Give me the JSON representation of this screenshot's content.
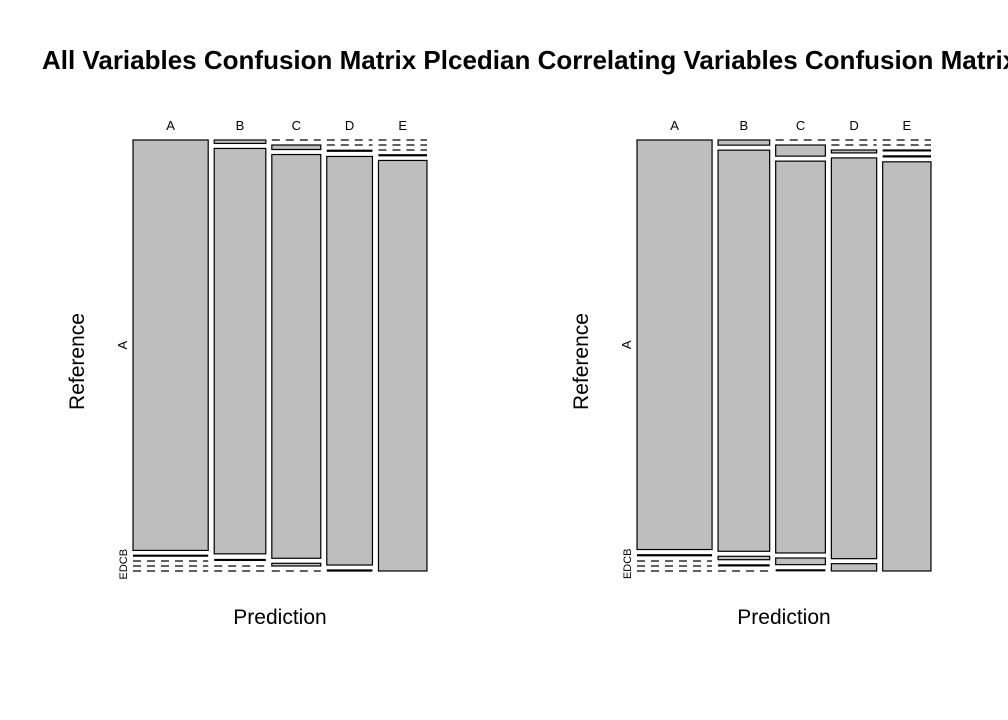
{
  "title": "All Variables Confusion Matrix Plcedian Correlating Variables Confusion Matrix Plot",
  "chart_data": [
    {
      "type": "mosaic",
      "panel": "All Variables",
      "xlabel": "Prediction",
      "ylabel": "Reference",
      "categories": [
        "A",
        "B",
        "C",
        "D",
        "E"
      ],
      "reference_levels": [
        "A",
        "B",
        "C",
        "D",
        "E"
      ],
      "y_tick_labels": {
        "A": "A",
        "small_group": "EDCB"
      },
      "matrix": [
        [
          1394,
          8,
          0,
          0,
          0
        ],
        [
          2,
          945,
          10,
          0,
          0
        ],
        [
          0,
          5,
          893,
          3,
          0
        ],
        [
          0,
          0,
          6,
          843,
          1
        ],
        [
          0,
          0,
          0,
          2,
          900
        ]
      ],
      "fill_color": "#bebebe"
    },
    {
      "type": "mosaic",
      "panel": "Median Correlating Variables",
      "xlabel": "Prediction",
      "ylabel": "Reference",
      "categories": [
        "A",
        "B",
        "C",
        "D",
        "E"
      ],
      "reference_levels": [
        "A",
        "B",
        "C",
        "D",
        "E"
      ],
      "y_tick_labels": {
        "A": "A",
        "small_group": "EDCB"
      },
      "matrix": [
        [
          1390,
          12,
          0,
          0,
          0
        ],
        [
          5,
          936,
          25,
          0,
          0
        ],
        [
          0,
          8,
          880,
          6,
          2
        ],
        [
          0,
          3,
          15,
          821,
          2
        ],
        [
          0,
          0,
          3,
          15,
          894
        ]
      ],
      "fill_color": "#bebebe"
    }
  ]
}
